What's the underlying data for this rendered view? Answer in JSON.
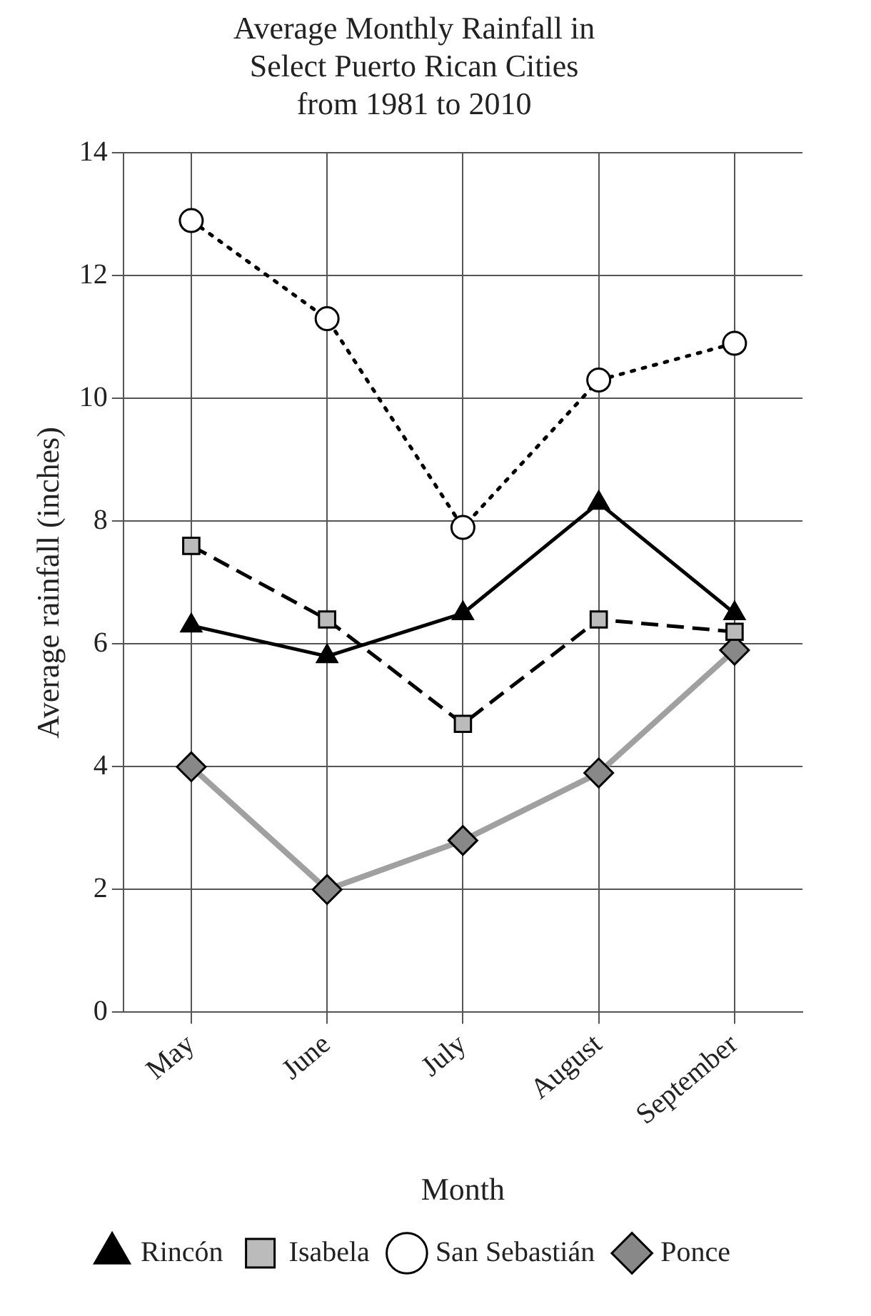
{
  "chart_data": {
    "type": "line",
    "title": [
      "Average Monthly Rainfall in",
      "Select Puerto Rican Cities",
      "from 1981 to 2010"
    ],
    "xlabel": "Month",
    "ylabel": "Average rainfall (inches)",
    "categories": [
      "May",
      "June",
      "July",
      "August",
      "September"
    ],
    "series": [
      {
        "name": "Rincón",
        "color": "#000000",
        "values": [
          6.3,
          5.8,
          6.5,
          8.3,
          6.5
        ],
        "marker": "triangle",
        "line_style": "solid"
      },
      {
        "name": "Isabela",
        "color": "#000000",
        "values": [
          7.6,
          6.4,
          4.7,
          6.4,
          6.2
        ],
        "marker": "square",
        "line_style": "dashed"
      },
      {
        "name": "San Sebastián",
        "color": "#000000",
        "values": [
          12.9,
          11.3,
          7.9,
          10.3,
          10.9
        ],
        "marker": "circle",
        "line_style": "dotted"
      },
      {
        "name": "Ponce",
        "color": "#a0a0a0",
        "values": [
          4.0,
          2.0,
          2.8,
          3.9,
          5.9
        ],
        "marker": "diamond",
        "line_style": "solid"
      }
    ],
    "ylim": [
      0,
      14
    ],
    "yticks": [
      0,
      2,
      4,
      6,
      8,
      10,
      12,
      14
    ],
    "grid": true,
    "legend": "bottom"
  }
}
